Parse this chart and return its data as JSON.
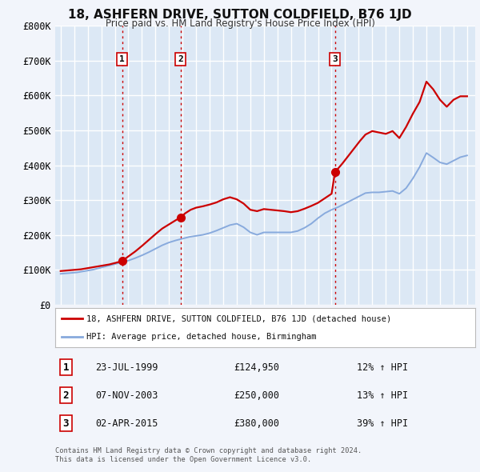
{
  "title": "18, ASHFERN DRIVE, SUTTON COLDFIELD, B76 1JD",
  "subtitle": "Price paid vs. HM Land Registry's House Price Index (HPI)",
  "bg_color": "#f2f5fb",
  "plot_bg_color": "#dce8f5",
  "grid_color": "#ffffff",
  "ylim": [
    0,
    800000
  ],
  "yticks": [
    0,
    100000,
    200000,
    300000,
    400000,
    500000,
    600000,
    700000,
    800000
  ],
  "ytick_labels": [
    "£0",
    "£100K",
    "£200K",
    "£300K",
    "£400K",
    "£500K",
    "£600K",
    "£700K",
    "£800K"
  ],
  "xlim_start": 1994.6,
  "xlim_end": 2025.6,
  "sale_color": "#cc0000",
  "hpi_color": "#88aadd",
  "transactions": [
    {
      "year": 1999.55,
      "price": 124950,
      "label": "1"
    },
    {
      "year": 2003.85,
      "price": 250000,
      "label": "2"
    },
    {
      "year": 2015.25,
      "price": 380000,
      "label": "3"
    }
  ],
  "vline_color": "#cc0000",
  "sale_data_x": [
    1995.0,
    1995.3,
    1995.6,
    1995.9,
    1996.2,
    1996.5,
    1996.8,
    1997.1,
    1997.4,
    1997.7,
    1998.0,
    1998.3,
    1998.6,
    1998.9,
    1999.2,
    1999.55,
    1999.55,
    2000.0,
    2000.5,
    2001.0,
    2001.5,
    2002.0,
    2002.5,
    2003.0,
    2003.5,
    2003.85,
    2003.85,
    2004.2,
    2004.6,
    2005.0,
    2005.5,
    2006.0,
    2006.5,
    2007.0,
    2007.5,
    2008.0,
    2008.5,
    2009.0,
    2009.5,
    2010.0,
    2010.5,
    2011.0,
    2011.5,
    2012.0,
    2012.5,
    2013.0,
    2013.5,
    2014.0,
    2014.5,
    2015.0,
    2015.25,
    2015.25,
    2015.8,
    2016.2,
    2016.7,
    2017.1,
    2017.5,
    2018.0,
    2018.5,
    2019.0,
    2019.5,
    2020.0,
    2020.5,
    2021.0,
    2021.5,
    2022.0,
    2022.5,
    2023.0,
    2023.5,
    2024.0,
    2024.5,
    2025.0
  ],
  "sale_data_y": [
    96000,
    97000,
    98000,
    99000,
    100000,
    101000,
    103000,
    105000,
    107000,
    109000,
    111000,
    113000,
    115000,
    118000,
    121000,
    124950,
    124950,
    138000,
    152000,
    168000,
    185000,
    202000,
    218000,
    230000,
    242000,
    250000,
    250000,
    262000,
    272000,
    278000,
    282000,
    287000,
    293000,
    302000,
    308000,
    302000,
    290000,
    272000,
    268000,
    274000,
    272000,
    270000,
    268000,
    265000,
    268000,
    275000,
    283000,
    292000,
    305000,
    318000,
    380000,
    380000,
    405000,
    425000,
    450000,
    470000,
    488000,
    498000,
    494000,
    490000,
    498000,
    478000,
    510000,
    548000,
    582000,
    640000,
    618000,
    588000,
    568000,
    588000,
    598000,
    598000
  ],
  "hpi_data_x": [
    1995.0,
    1995.3,
    1995.6,
    1995.9,
    1996.2,
    1996.5,
    1996.8,
    1997.1,
    1997.4,
    1997.7,
    1998.0,
    1998.3,
    1998.6,
    1998.9,
    1999.2,
    1999.5,
    2000.0,
    2000.5,
    2001.0,
    2001.5,
    2002.0,
    2002.5,
    2003.0,
    2003.5,
    2004.0,
    2004.5,
    2005.0,
    2005.5,
    2006.0,
    2006.5,
    2007.0,
    2007.5,
    2008.0,
    2008.5,
    2009.0,
    2009.5,
    2010.0,
    2010.5,
    2011.0,
    2011.5,
    2012.0,
    2012.5,
    2013.0,
    2013.5,
    2014.0,
    2014.5,
    2015.0,
    2015.5,
    2016.0,
    2016.5,
    2017.0,
    2017.5,
    2018.0,
    2018.5,
    2019.0,
    2019.5,
    2020.0,
    2020.5,
    2021.0,
    2021.5,
    2022.0,
    2022.5,
    2023.0,
    2023.5,
    2024.0,
    2024.5,
    2025.0
  ],
  "hpi_data_y": [
    88000,
    89000,
    90000,
    91000,
    92000,
    94000,
    96000,
    98000,
    100000,
    103000,
    106000,
    109000,
    112000,
    115000,
    118000,
    120000,
    126000,
    133000,
    141000,
    150000,
    160000,
    170000,
    178000,
    184000,
    189000,
    194000,
    197000,
    200000,
    205000,
    212000,
    220000,
    228000,
    232000,
    222000,
    207000,
    200000,
    207000,
    207000,
    207000,
    207000,
    207000,
    211000,
    220000,
    232000,
    248000,
    262000,
    272000,
    280000,
    290000,
    300000,
    310000,
    320000,
    322000,
    322000,
    324000,
    326000,
    318000,
    334000,
    362000,
    395000,
    435000,
    422000,
    408000,
    403000,
    413000,
    423000,
    428000
  ],
  "legend_box_color": "#ffffff",
  "legend_border_color": "#bbbbbb",
  "table_rows": [
    {
      "num": "1",
      "date": "23-JUL-1999",
      "price": "£124,950",
      "change": "12% ↑ HPI"
    },
    {
      "num": "2",
      "date": "07-NOV-2003",
      "price": "£250,000",
      "change": "13% ↑ HPI"
    },
    {
      "num": "3",
      "date": "02-APR-2015",
      "price": "£380,000",
      "change": "39% ↑ HPI"
    }
  ],
  "footer": "Contains HM Land Registry data © Crown copyright and database right 2024.\nThis data is licensed under the Open Government Licence v3.0.",
  "label_box_color": "#ffffff",
  "label_box_border": "#cc0000"
}
